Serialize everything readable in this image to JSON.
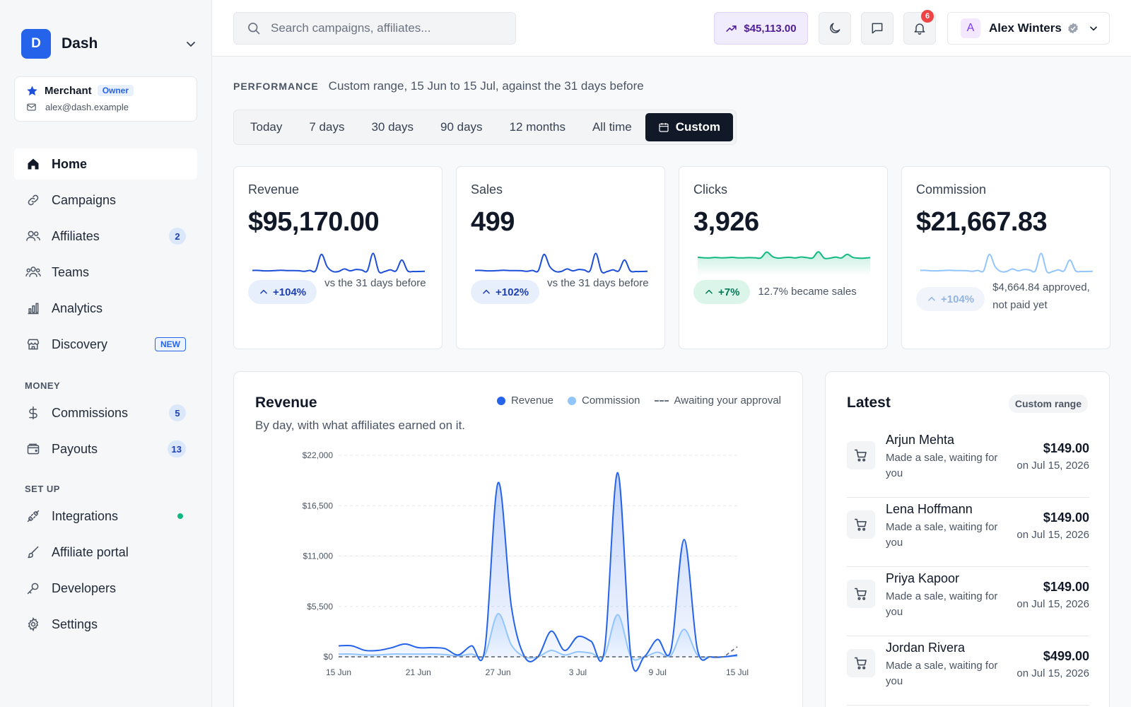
{
  "sidebar": {
    "brand": {
      "initial": "D",
      "name": "Dash"
    },
    "merchant": {
      "name": "Merchant",
      "role": "Owner",
      "email": "alex@dash.example"
    },
    "nav": [
      {
        "label": "Home",
        "icon": "home-icon",
        "active": true
      },
      {
        "label": "Campaigns",
        "icon": "link-icon"
      },
      {
        "label": "Affiliates",
        "icon": "users-icon",
        "count": "2"
      },
      {
        "label": "Teams",
        "icon": "team-icon"
      },
      {
        "label": "Analytics",
        "icon": "bar-chart-icon"
      },
      {
        "label": "Discovery",
        "icon": "store-icon",
        "tag": "NEW"
      }
    ],
    "money_label": "MONEY",
    "money": [
      {
        "label": "Commissions",
        "icon": "dollar-icon",
        "count": "5"
      },
      {
        "label": "Payouts",
        "icon": "wallet-icon",
        "count": "13"
      }
    ],
    "setup_label": "SET UP",
    "setup": [
      {
        "label": "Integrations",
        "icon": "plug-icon",
        "status": "connected"
      },
      {
        "label": "Affiliate portal",
        "icon": "brush-icon"
      },
      {
        "label": "Developers",
        "icon": "key-icon"
      },
      {
        "label": "Settings",
        "icon": "gear-icon"
      }
    ]
  },
  "topbar": {
    "search_placeholder": "Search campaigns, affiliates...",
    "balance": "$45,113.00",
    "notifications": "6",
    "user": {
      "initial": "A",
      "name": "Alex Winters"
    }
  },
  "performance": {
    "label": "PERFORMANCE",
    "description": "Custom range, 15 Jun to 15 Jul, against the 31 days before",
    "ranges": [
      "Today",
      "7 days",
      "30 days",
      "90 days",
      "12 months",
      "All time"
    ],
    "selected_range": "Custom"
  },
  "stats": [
    {
      "title": "Revenue",
      "value": "$95,170.00",
      "change": "+104%",
      "note": "vs the 31 days before",
      "color": "#1d4ed8"
    },
    {
      "title": "Sales",
      "value": "499",
      "change": "+102%",
      "note": "vs the 31 days before",
      "color": "#1d4ed8"
    },
    {
      "title": "Clicks",
      "value": "3,926",
      "change": "+7%",
      "note": "12.7% became sales",
      "color": "#10b981"
    },
    {
      "title": "Commission",
      "value": "$21,667.83",
      "change": "+104%",
      "note": "$4,664.84 approved, not paid yet",
      "color": "#93c5fd"
    }
  ],
  "revenue_card": {
    "title": "Revenue",
    "subtitle": "By day, with what affiliates earned on it.",
    "legend": {
      "revenue": "Revenue",
      "commission": "Commission",
      "awaiting": "Awaiting your approval"
    },
    "colors": {
      "revenue": "#2563eb",
      "commission": "#93c5fd",
      "awaiting": "#6b7280"
    }
  },
  "chart_data": {
    "type": "area",
    "ylim": [
      0,
      22000
    ],
    "yticks": [
      "$22,000",
      "$16,500",
      "$11,000",
      "$5,500",
      "$0"
    ],
    "ytick_values": [
      22000,
      16500,
      11000,
      5500,
      0
    ],
    "xticks": [
      "15 Jun",
      "21 Jun",
      "27 Jun",
      "3 Jul",
      "9 Jul",
      "15 Jul"
    ],
    "xtick_days": [
      0,
      6,
      12,
      18,
      24,
      30
    ],
    "x_days": [
      0,
      1,
      2,
      3,
      4,
      5,
      6,
      7,
      8,
      9,
      10,
      11,
      12,
      13,
      14,
      15,
      16,
      17,
      18,
      19,
      20,
      21,
      22,
      23,
      24,
      25,
      26,
      27,
      28,
      29,
      30
    ],
    "series": [
      {
        "name": "Revenue",
        "values": [
          1200,
          1200,
          700,
          700,
          1000,
          1400,
          1000,
          1000,
          900,
          200,
          1200,
          800,
          19000,
          5500,
          0,
          0,
          2800,
          700,
          2200,
          1700,
          700,
          20100,
          0,
          0,
          1900,
          700,
          12800,
          800,
          0,
          0,
          200
        ]
      },
      {
        "name": "Commission",
        "values": [
          300,
          300,
          200,
          200,
          300,
          300,
          300,
          300,
          250,
          100,
          300,
          200,
          4700,
          1300,
          0,
          0,
          700,
          200,
          550,
          400,
          150,
          4600,
          0,
          0,
          500,
          150,
          3000,
          200,
          0,
          0,
          100
        ]
      },
      {
        "name": "Awaiting your approval",
        "values": [
          0,
          0,
          0,
          0,
          0,
          0,
          0,
          0,
          0,
          0,
          0,
          0,
          0,
          0,
          0,
          0,
          0,
          0,
          0,
          0,
          0,
          0,
          0,
          0,
          0,
          0,
          0,
          0,
          0,
          0,
          1100
        ]
      }
    ]
  },
  "latest": {
    "title": "Latest",
    "tag": "Custom range",
    "items": [
      {
        "name": "Arjun Mehta",
        "desc": "Made a sale, waiting for you",
        "amount": "$149.00",
        "date": "on Jul 15, 2026"
      },
      {
        "name": "Lena Hoffmann",
        "desc": "Made a sale, waiting for you",
        "amount": "$149.00",
        "date": "on Jul 15, 2026"
      },
      {
        "name": "Priya Kapoor",
        "desc": "Made a sale, waiting for you",
        "amount": "$149.00",
        "date": "on Jul 15, 2026"
      },
      {
        "name": "Jordan Rivera",
        "desc": "Made a sale, waiting for you",
        "amount": "$499.00",
        "date": "on Jul 15, 2026"
      }
    ]
  }
}
